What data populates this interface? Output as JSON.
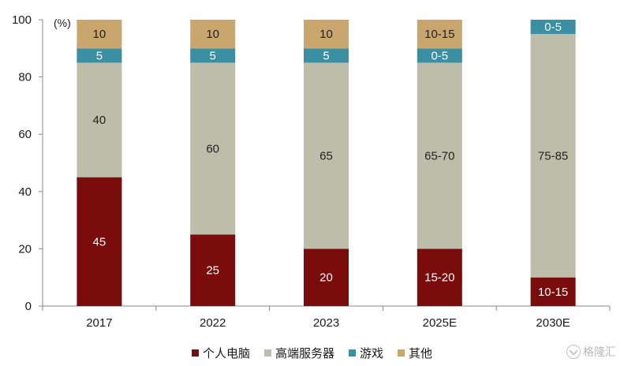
{
  "chart_data": {
    "type": "bar",
    "stacked": true,
    "unit_label": "(%)",
    "categories": [
      "2017",
      "2022",
      "2023",
      "2025E",
      "2030E"
    ],
    "ylim": [
      0,
      100
    ],
    "yticks": [
      0,
      20,
      40,
      60,
      80,
      100
    ],
    "series": [
      {
        "name": "个人电脑",
        "color": "#7a0c0c",
        "text_color": "#ffffff",
        "values": [
          45,
          25,
          20,
          20,
          10
        ],
        "labels": [
          "45",
          "25",
          "20",
          "15-20",
          "10-15"
        ]
      },
      {
        "name": "高端服务器",
        "color": "#bdbdaa",
        "text_color": "#222222",
        "values": [
          40,
          60,
          65,
          65,
          85
        ],
        "labels": [
          "40",
          "60",
          "65",
          "65-70",
          "75-85"
        ]
      },
      {
        "name": "游戏",
        "color": "#3a8fa3",
        "text_color": "#ffffff",
        "values": [
          5,
          5,
          5,
          5,
          5
        ],
        "labels": [
          "5",
          "5",
          "5",
          "0-5",
          "0-5"
        ]
      },
      {
        "name": "其他",
        "color": "#c8a66e",
        "text_color": "#222222",
        "values": [
          10,
          10,
          10,
          10,
          0
        ],
        "labels": [
          "10",
          "10",
          "10",
          "10-15",
          ""
        ]
      }
    ],
    "grid": false,
    "legend_position": "bottom"
  },
  "watermark": {
    "text": "格隆汇"
  }
}
